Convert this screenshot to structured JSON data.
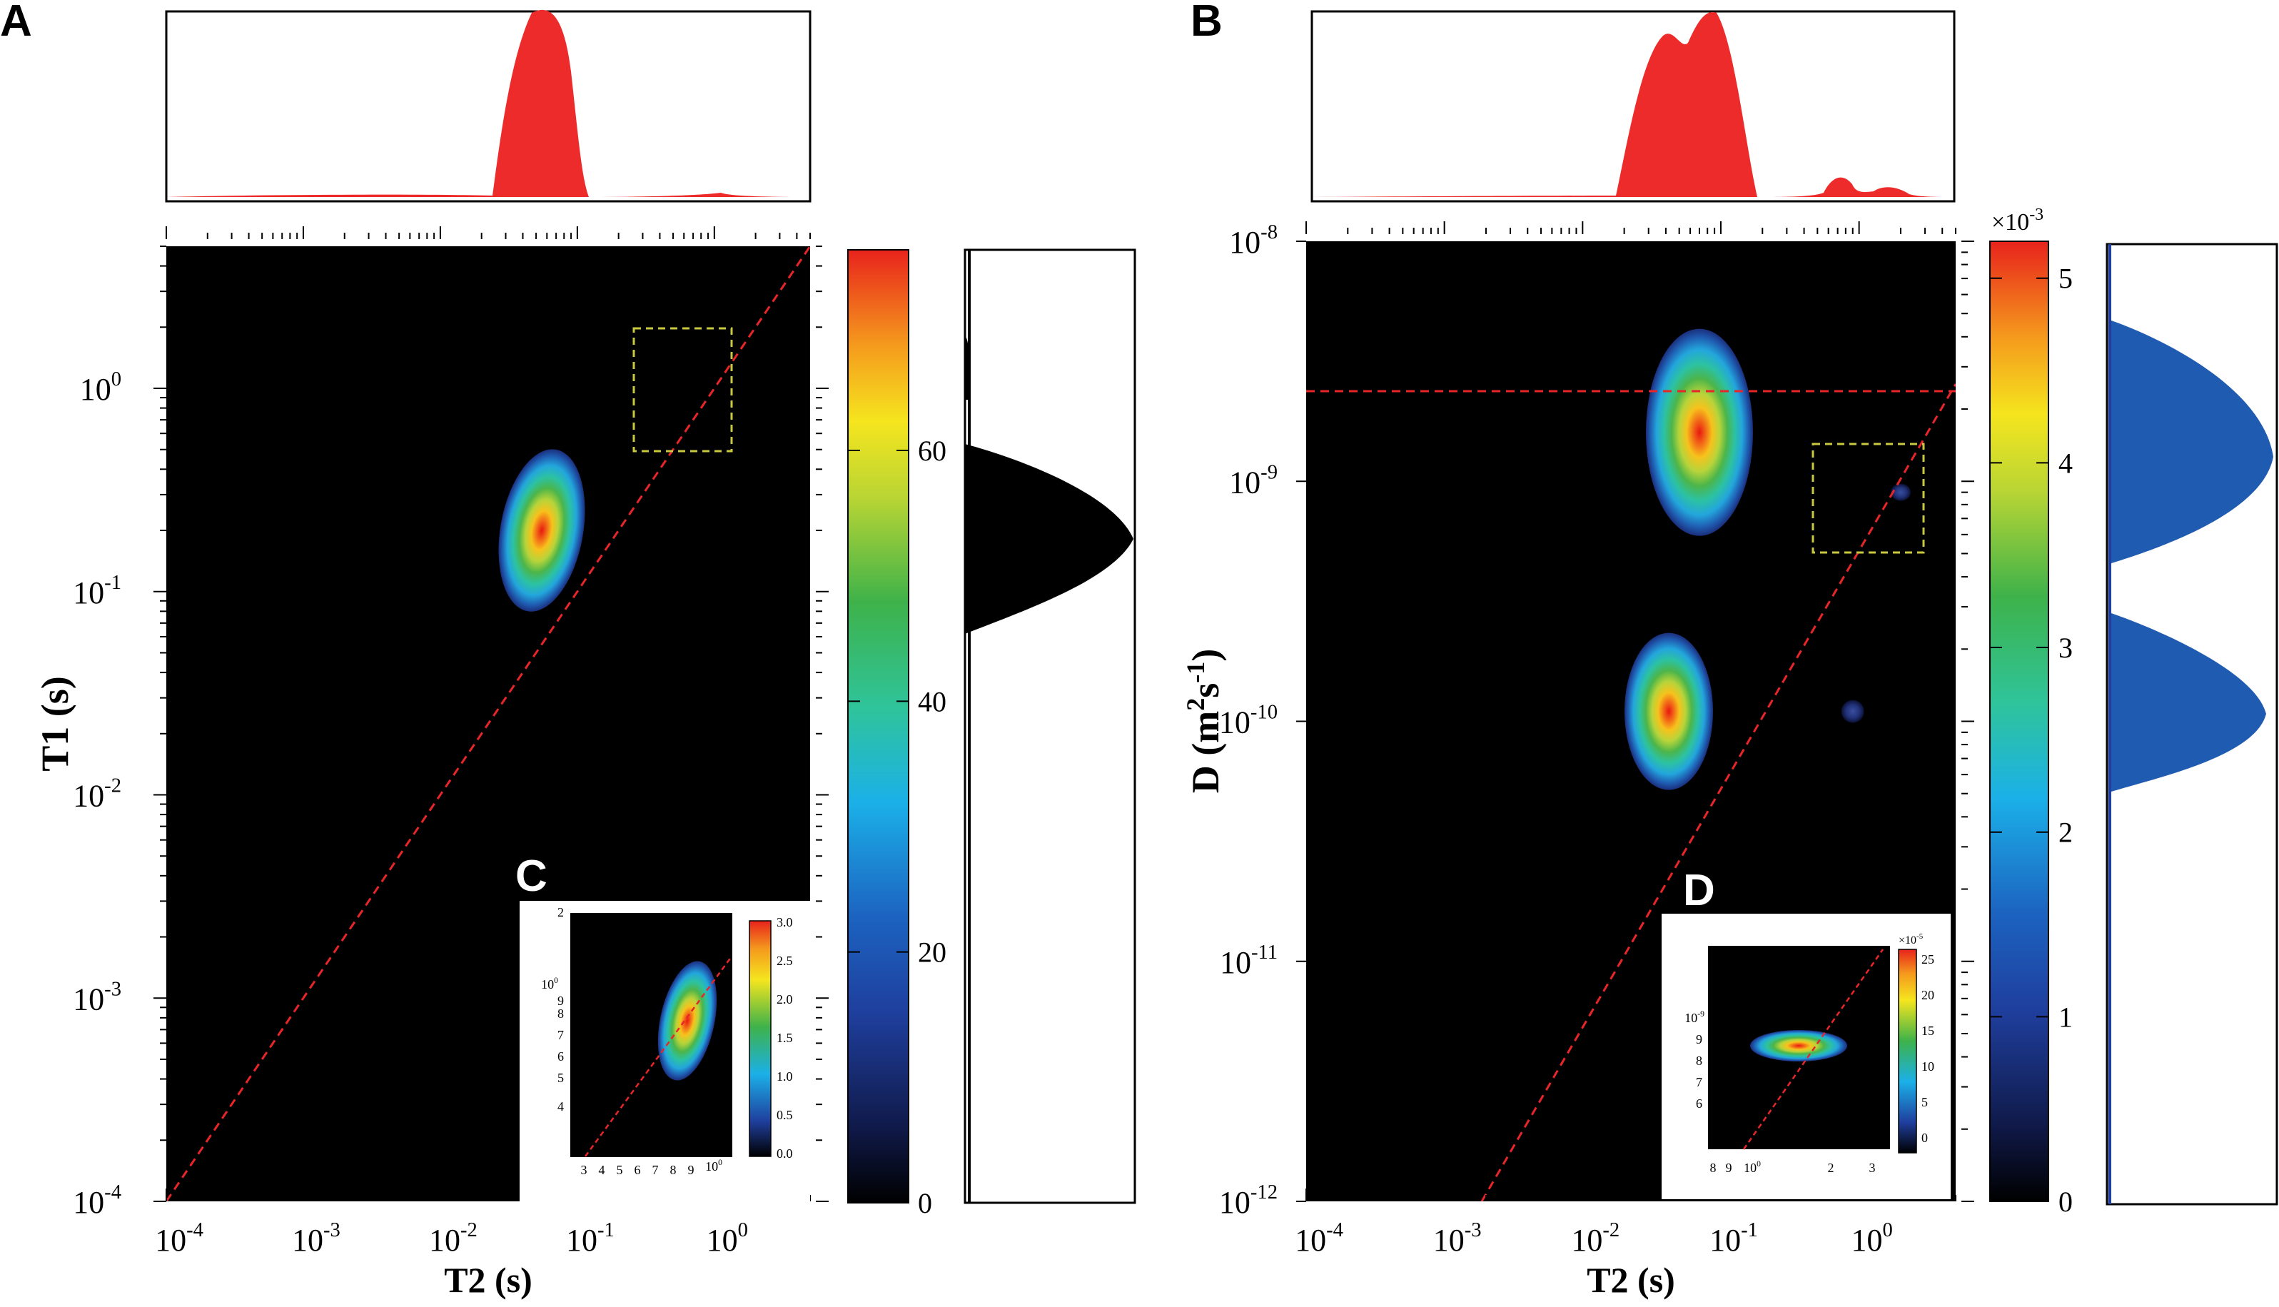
{
  "panels": {
    "A": {
      "label": "A",
      "xlabel": "T2 (s)",
      "ylabel": "T1 (s)",
      "x_ticks": [
        {
          "value": -4,
          "base": "10",
          "exp": "-4"
        },
        {
          "value": -3,
          "base": "10",
          "exp": "-3"
        },
        {
          "value": -2,
          "base": "10",
          "exp": "-2"
        },
        {
          "value": -1,
          "base": "10",
          "exp": "-1"
        },
        {
          "value": 0,
          "base": "10",
          "exp": "0"
        }
      ],
      "y_ticks": [
        {
          "value": -4,
          "base": "10",
          "exp": "-4"
        },
        {
          "value": -3,
          "base": "10",
          "exp": "-3"
        },
        {
          "value": -2,
          "base": "10",
          "exp": "-2"
        },
        {
          "value": -1,
          "base": "10",
          "exp": "-1"
        },
        {
          "value": 0,
          "base": "10",
          "exp": "0"
        }
      ],
      "colorbar": {
        "ticks": [
          "0",
          "20",
          "40",
          "60"
        ],
        "tick_values": [
          0,
          20,
          40,
          60
        ],
        "max": 76,
        "multiplier": ""
      },
      "inset": {
        "label": "C",
        "x_ticks": [
          "3",
          "4",
          "5",
          "6",
          "7",
          "8",
          "9"
        ],
        "x_end": {
          "base": "10",
          "exp": "0"
        },
        "y_ticks": [
          "2",
          "9",
          "8",
          "7",
          "6",
          "5",
          "4"
        ],
        "y_mid": {
          "base": "10",
          "exp": "0"
        },
        "colorbar_ticks": [
          "3.0",
          "2.5",
          "2.0",
          "1.5",
          "1.0",
          "0.5",
          "0.0"
        ]
      }
    },
    "B": {
      "label": "B",
      "xlabel": "T2 (s)",
      "ylabel_main": "D (m",
      "ylabel_sup1": "2",
      "ylabel_mid": "s",
      "ylabel_sup2": "-1",
      "ylabel_end": ")",
      "x_ticks": [
        {
          "value": -4,
          "base": "10",
          "exp": "-4"
        },
        {
          "value": -3,
          "base": "10",
          "exp": "-3"
        },
        {
          "value": -2,
          "base": "10",
          "exp": "-2"
        },
        {
          "value": -1,
          "base": "10",
          "exp": "-1"
        },
        {
          "value": 0,
          "base": "10",
          "exp": "0"
        }
      ],
      "y_ticks": [
        {
          "value": -12,
          "base": "10",
          "exp": "-12"
        },
        {
          "value": -11,
          "base": "10",
          "exp": "-11"
        },
        {
          "value": -10,
          "base": "10",
          "exp": "-10"
        },
        {
          "value": -9,
          "base": "10",
          "exp": "-9"
        },
        {
          "value": -8,
          "base": "10",
          "exp": "-8"
        }
      ],
      "colorbar": {
        "ticks": [
          "0",
          "1",
          "2",
          "3",
          "4",
          "5"
        ],
        "tick_values": [
          0,
          1,
          2,
          3,
          4,
          5
        ],
        "max": 5.2,
        "multiplier_base": "×10",
        "multiplier_exp": "-3"
      },
      "inset": {
        "label": "D",
        "x_ticks": [
          "8",
          "9"
        ],
        "x_mid": {
          "base": "10",
          "exp": "0"
        },
        "x_ticks2": [
          "2",
          "3"
        ],
        "y_top": {
          "base": "10",
          "exp": "-9"
        },
        "y_ticks": [
          "9",
          "8",
          "7",
          "6"
        ],
        "colorbar_multiplier": {
          "base": "×10",
          "exp": "-5"
        },
        "colorbar_ticks": [
          "25",
          "20",
          "15",
          "10",
          "5",
          "0"
        ]
      }
    }
  },
  "chart_data": [
    {
      "type": "heatmap",
      "panel": "A",
      "title": "",
      "xlabel": "T2 (s)",
      "ylabel": "T1 (s)",
      "x_scale": "log",
      "y_scale": "log",
      "xlim": [
        0.0001,
        5
      ],
      "ylim": [
        0.0001,
        5
      ],
      "peaks": [
        {
          "t2": 0.055,
          "y": 0.2,
          "amplitude": 76
        }
      ],
      "reference_lines": [
        {
          "type": "diagonal",
          "equation": "T1 = T2",
          "color": "#e8262a"
        }
      ],
      "highlight_box": {
        "x_range": [
          0.25,
          1.4
        ],
        "y_range": [
          0.5,
          1.5
        ]
      },
      "marginal_top": "T2 distribution (peak ≈ 0.06 s)",
      "marginal_right": "T1 distribution (peak ≈ 0.2 s)",
      "colorbar": {
        "min": 0,
        "max": 76
      }
    },
    {
      "type": "heatmap",
      "panel": "B",
      "title": "",
      "xlabel": "T2 (s)",
      "ylabel": "D (m^2 s^-1)",
      "x_scale": "log",
      "y_scale": "log",
      "xlim": [
        0.0001,
        5
      ],
      "ylim": [
        1e-12,
        1e-08
      ],
      "peaks": [
        {
          "t2": 0.07,
          "d": 1.6e-09,
          "amplitude": 0.0052
        },
        {
          "t2": 0.042,
          "d": 1.1e-10,
          "amplitude": 0.004
        },
        {
          "t2": 0.9,
          "d": 1.1e-10,
          "amplitude": 0.0004
        },
        {
          "t2": 2.0,
          "d": 9e-10,
          "amplitude": 0.0003
        }
      ],
      "reference_lines": [
        {
          "type": "horizontal",
          "d": 2.3e-09,
          "color": "#e8262a"
        },
        {
          "type": "diagonal",
          "color": "#e8262a"
        }
      ],
      "highlight_box": {
        "x_range": [
          0.6,
          3.4
        ],
        "y_range": [
          5e-10,
          1.3e-09
        ]
      },
      "marginal_top": "T2 distribution (peaks ≈ 0.05 s, 0.075 s, 0.8 s, 2 s)",
      "marginal_right": "D distribution (peaks ≈ 1e-9 and 1e-10 m^2/s)",
      "colorbar": {
        "min": 0,
        "max": 0.0052
      }
    }
  ]
}
